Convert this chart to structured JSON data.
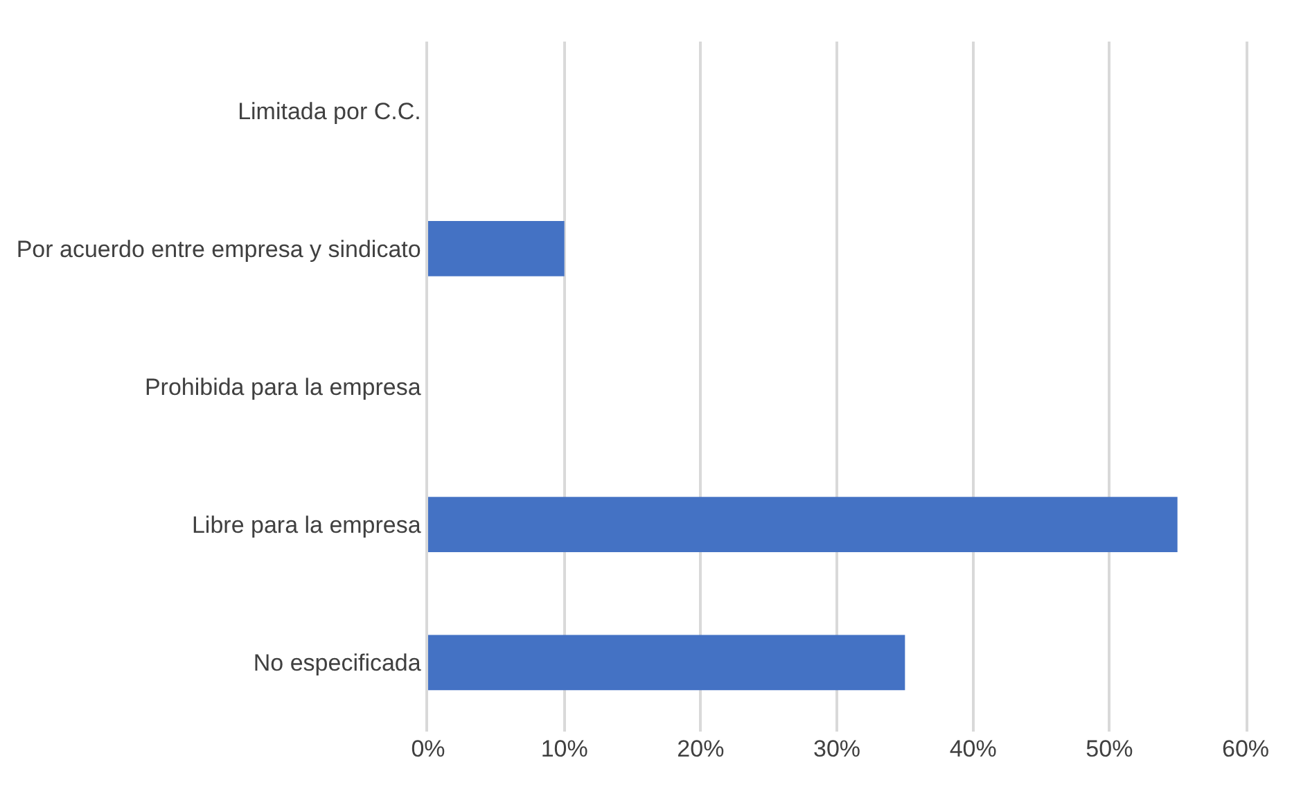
{
  "chart_data": {
    "type": "bar",
    "orientation": "horizontal",
    "categories": [
      "Limitada por C.C.",
      "Por acuerdo entre empresa y sindicato",
      "Prohibida para la empresa",
      "Libre para la empresa",
      "No especificada"
    ],
    "values": [
      0,
      10,
      0,
      55,
      35
    ],
    "color": "#4472c4",
    "xlim": [
      0,
      60
    ],
    "xticks": [
      {
        "value": 0,
        "label": "0%"
      },
      {
        "value": 10,
        "label": "10%"
      },
      {
        "value": 20,
        "label": "20%"
      },
      {
        "value": 30,
        "label": "30%"
      },
      {
        "value": 40,
        "label": "40%"
      },
      {
        "value": 50,
        "label": "50%"
      },
      {
        "value": 60,
        "label": "60%"
      }
    ],
    "grid": "x",
    "legend": false
  }
}
